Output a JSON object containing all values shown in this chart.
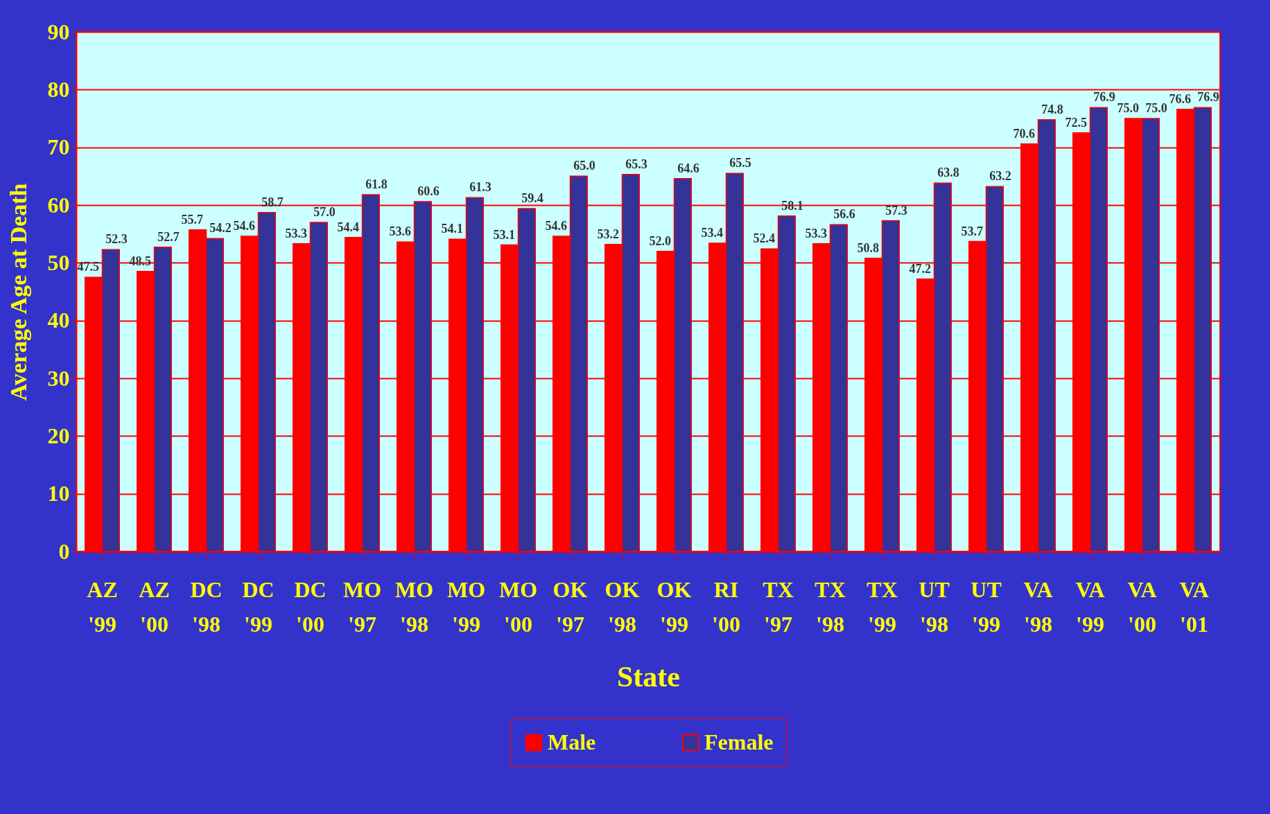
{
  "chart_data": {
    "type": "bar",
    "xlabel": "State",
    "ylabel": "Average Age at Death",
    "categories": [
      "AZ '99",
      "AZ '00",
      "DC '98",
      "DC '99",
      "DC '00",
      "MO '97",
      "MO '98",
      "MO '99",
      "MO '00",
      "OK '97",
      "OK '98",
      "OK '99",
      "RI '00",
      "TX '97",
      "TX '98",
      "TX '99",
      "UT '98",
      "UT '99",
      "VA '98",
      "VA '99",
      "VA '00",
      "VA '01"
    ],
    "series": [
      {
        "name": "Male",
        "color": "#ff0000",
        "values": [
          47.5,
          48.5,
          55.7,
          54.6,
          53.3,
          54.4,
          53.6,
          54.1,
          53.1,
          54.6,
          53.2,
          52.0,
          53.4,
          52.4,
          53.3,
          50.8,
          47.2,
          53.7,
          70.6,
          72.5,
          75.0,
          76.6
        ],
        "value_labels": [
          "47.5",
          "48.5",
          "55.7",
          "54.6",
          "53.3",
          "54.4",
          "53.6",
          "54.1",
          "53.1",
          "54.6",
          "53.2",
          "52.0",
          "53.4",
          "52.4",
          "53.3",
          "50.8",
          "47.2",
          "53.7",
          "70.6",
          "72.5",
          "75.0",
          "76.6"
        ]
      },
      {
        "name": "Female",
        "color": "#333399",
        "values": [
          52.3,
          52.7,
          54.2,
          58.7,
          57.0,
          61.8,
          60.6,
          61.3,
          59.4,
          65.0,
          65.3,
          64.6,
          65.5,
          58.1,
          56.6,
          57.3,
          63.8,
          63.2,
          74.8,
          76.9,
          75.0,
          76.9
        ],
        "value_labels": [
          "52.3",
          "52.7",
          "54.2",
          "58.7",
          "57.0",
          "61.8",
          "60.6",
          "61.3",
          "59.4",
          "65.0",
          "65.3",
          "64.6",
          "65.5",
          "58.1",
          "56.6",
          "57.3",
          "63.8",
          "63.2",
          "74.8",
          "76.9",
          "75.0",
          "76.9"
        ]
      }
    ],
    "ylim": [
      0,
      90
    ],
    "yticks": [
      0,
      10,
      20,
      30,
      40,
      50,
      60,
      70,
      80,
      90
    ],
    "grid": "y",
    "legend": "bottom"
  }
}
